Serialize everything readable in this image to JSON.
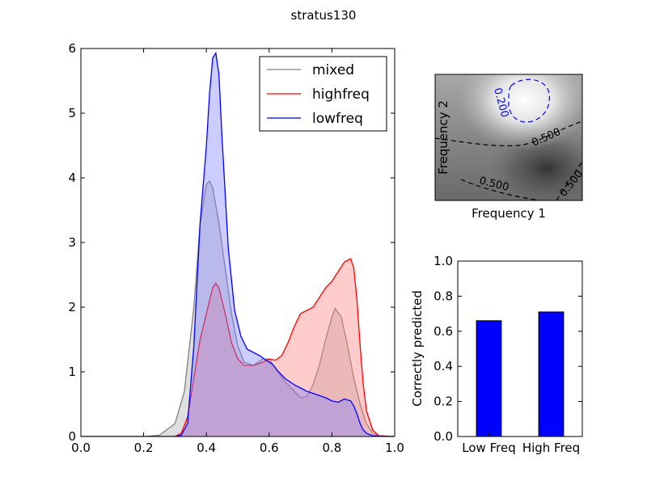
{
  "figure": {
    "title": "stratus130"
  },
  "chart_data": [
    {
      "type": "area",
      "name": "density",
      "xlim": [
        0.0,
        1.0
      ],
      "ylim": [
        0,
        6
      ],
      "xticks": [
        "0.0",
        "0.2",
        "0.4",
        "0.6",
        "0.8",
        "1.0"
      ],
      "yticks": [
        "0",
        "1",
        "2",
        "3",
        "4",
        "5",
        "6"
      ],
      "xlabel": "",
      "ylabel": "",
      "grid": false,
      "legend_position": "top-right",
      "series": [
        {
          "name": "mixed",
          "color": "#808080",
          "fill": "#b0b0b0",
          "x": [
            0.0,
            0.2,
            0.25,
            0.3,
            0.33,
            0.36,
            0.38,
            0.4,
            0.41,
            0.42,
            0.44,
            0.46,
            0.48,
            0.5,
            0.52,
            0.55,
            0.58,
            0.6,
            0.62,
            0.65,
            0.68,
            0.7,
            0.72,
            0.74,
            0.76,
            0.78,
            0.8,
            0.81,
            0.83,
            0.85,
            0.87,
            0.89,
            0.91,
            0.93,
            0.95,
            1.0
          ],
          "y": [
            0,
            0,
            0.02,
            0.2,
            0.7,
            2.0,
            3.3,
            3.9,
            3.95,
            3.85,
            3.3,
            2.6,
            1.9,
            1.4,
            1.15,
            1.1,
            1.2,
            1.2,
            1.05,
            0.85,
            0.7,
            0.6,
            0.62,
            0.8,
            1.1,
            1.5,
            1.85,
            1.98,
            1.85,
            1.4,
            0.9,
            0.5,
            0.2,
            0.05,
            0.01,
            0
          ]
        },
        {
          "name": "highfreq",
          "color": "#ff0000",
          "fill": "#ff8080",
          "x": [
            0.0,
            0.3,
            0.32,
            0.34,
            0.36,
            0.38,
            0.4,
            0.42,
            0.43,
            0.44,
            0.46,
            0.48,
            0.5,
            0.52,
            0.55,
            0.58,
            0.6,
            0.62,
            0.64,
            0.66,
            0.68,
            0.7,
            0.72,
            0.74,
            0.76,
            0.78,
            0.8,
            0.82,
            0.84,
            0.86,
            0.87,
            0.88,
            0.89,
            0.9,
            0.91,
            0.93,
            0.95,
            1.0
          ],
          "y": [
            0,
            0,
            0.05,
            0.3,
            0.9,
            1.5,
            1.9,
            2.3,
            2.37,
            2.3,
            1.9,
            1.45,
            1.2,
            1.1,
            1.1,
            1.15,
            1.2,
            1.18,
            1.25,
            1.45,
            1.7,
            1.9,
            1.95,
            2.0,
            2.15,
            2.3,
            2.4,
            2.55,
            2.7,
            2.75,
            2.6,
            2.1,
            1.4,
            0.8,
            0.4,
            0.1,
            0.01,
            0
          ]
        },
        {
          "name": "lowfreq",
          "color": "#0000ff",
          "fill": "#8080ff",
          "x": [
            0.0,
            0.3,
            0.32,
            0.34,
            0.36,
            0.38,
            0.4,
            0.41,
            0.42,
            0.43,
            0.44,
            0.45,
            0.47,
            0.49,
            0.51,
            0.53,
            0.55,
            0.57,
            0.59,
            0.61,
            0.63,
            0.65,
            0.68,
            0.7,
            0.72,
            0.75,
            0.78,
            0.8,
            0.82,
            0.84,
            0.86,
            0.87,
            0.88,
            0.89,
            0.9,
            0.91,
            0.93,
            1.0
          ],
          "y": [
            0,
            0,
            0.02,
            0.2,
            1.4,
            3.3,
            4.5,
            5.3,
            5.85,
            5.93,
            5.6,
            4.6,
            2.9,
            1.95,
            1.55,
            1.35,
            1.3,
            1.25,
            1.18,
            1.12,
            1.0,
            0.9,
            0.8,
            0.75,
            0.7,
            0.65,
            0.6,
            0.55,
            0.53,
            0.58,
            0.55,
            0.47,
            0.35,
            0.2,
            0.1,
            0.05,
            0.01,
            0
          ]
        }
      ]
    },
    {
      "type": "heatmap",
      "name": "frequency-map",
      "xlabel": "Frequency 1",
      "ylabel": "Frequency 2",
      "contour_labels": [
        "0.200",
        "0.500",
        "0.500",
        "0.500"
      ]
    },
    {
      "type": "bar",
      "name": "prediction-bars",
      "categories": [
        "Low Freq",
        "High Freq"
      ],
      "values": [
        0.66,
        0.71
      ],
      "ylim": [
        0.0,
        1.0
      ],
      "yticks": [
        "0.0",
        "0.2",
        "0.4",
        "0.6",
        "0.8",
        "1.0"
      ],
      "xlabel": "",
      "ylabel": "Correctly predicted",
      "color": "#0000ff"
    }
  ]
}
